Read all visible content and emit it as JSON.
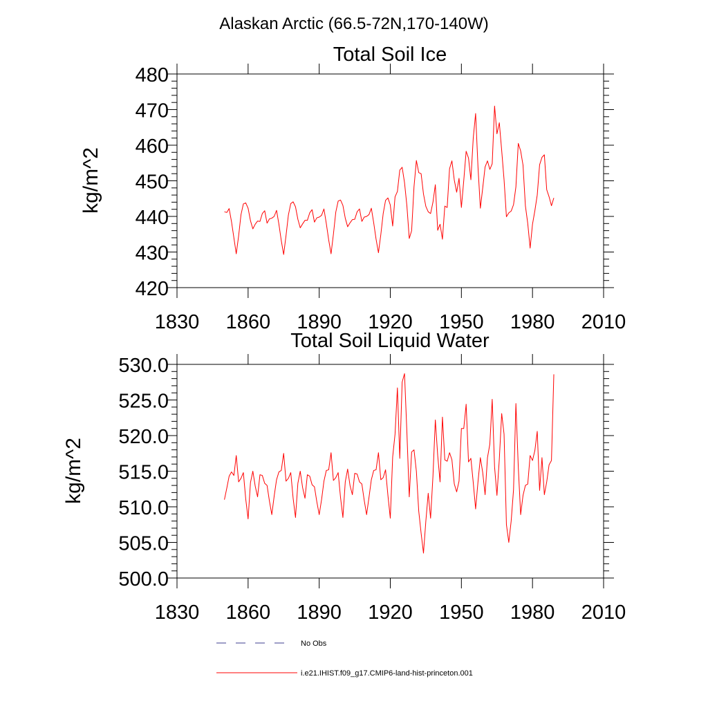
{
  "figure": {
    "title": "Alaskan Arctic (66.5-72N,170-140W)"
  },
  "legend": {
    "placement": "bottom-center",
    "entries": [
      {
        "label": "No Obs",
        "color": "#3b3b8f",
        "dash": "dashed"
      },
      {
        "label": "i.e21.IHIST.f09_g17.CMIP6-land-hist-princeton.001",
        "color": "#ff0000",
        "dash": "solid"
      }
    ]
  },
  "chart_data": [
    {
      "type": "line",
      "title": "Total Soil Ice",
      "xlabel": "",
      "ylabel": "kg/m^2",
      "xlim": [
        1830,
        2010
      ],
      "ylim": [
        420,
        480
      ],
      "xticks": [
        1830,
        1860,
        1890,
        1920,
        1950,
        1980,
        2010
      ],
      "xtick_labels": [
        "1830",
        "1860",
        "1890",
        "1920",
        "1950",
        "1980",
        "2010"
      ],
      "yticks": [
        420,
        430,
        440,
        450,
        460,
        470,
        480
      ],
      "ytick_labels": [
        "420",
        "430",
        "440",
        "450",
        "460",
        "470",
        "480"
      ],
      "grid": false,
      "series": [
        {
          "name": "i.e21.IHIST.f09_g17.CMIP6-land-hist-princeton.001",
          "color": "#ff0000",
          "x": [
            1850,
            1851,
            1852,
            1853,
            1854,
            1855,
            1856,
            1857,
            1858,
            1859,
            1860,
            1861,
            1862,
            1863,
            1864,
            1865,
            1866,
            1867,
            1868,
            1869,
            1870,
            1871,
            1872,
            1873,
            1874,
            1875,
            1876,
            1877,
            1878,
            1879,
            1880,
            1881,
            1882,
            1883,
            1884,
            1885,
            1886,
            1887,
            1888,
            1889,
            1890,
            1891,
            1892,
            1893,
            1894,
            1895,
            1896,
            1897,
            1898,
            1899,
            1900,
            1901,
            1902,
            1903,
            1904,
            1905,
            1906,
            1907,
            1908,
            1909,
            1910,
            1911,
            1912,
            1913,
            1914,
            1915,
            1916,
            1917,
            1918,
            1919,
            1920,
            1921,
            1922,
            1923,
            1924,
            1925,
            1926,
            1927,
            1928,
            1929,
            1930,
            1931,
            1932,
            1933,
            1934,
            1935,
            1936,
            1937,
            1938,
            1939,
            1940,
            1941,
            1942,
            1943,
            1944,
            1945,
            1946,
            1947,
            1948,
            1949,
            1950,
            1951,
            1952,
            1953,
            1954,
            1955,
            1956,
            1957,
            1958,
            1959,
            1960,
            1961,
            1962,
            1963,
            1964,
            1965,
            1966,
            1967,
            1968,
            1969,
            1970,
            1971,
            1972,
            1973,
            1974,
            1975,
            1976,
            1977,
            1978,
            1979,
            1980,
            1981,
            1982,
            1983,
            1984,
            1985,
            1986,
            1987,
            1988,
            1989
          ],
          "values": [
            441.3,
            441.1,
            442.2,
            438.5,
            434.0,
            429.5,
            434.5,
            440.5,
            443.5,
            443.8,
            442.3,
            438.8,
            436.5,
            437.8,
            438.7,
            438.6,
            440.8,
            441.6,
            438.1,
            439.3,
            439.5,
            440.0,
            441.7,
            437.8,
            433.2,
            429.3,
            434.6,
            440.4,
            443.6,
            444.1,
            442.7,
            439.2,
            436.8,
            437.9,
            438.9,
            438.9,
            441.0,
            441.9,
            438.4,
            439.6,
            439.8,
            440.3,
            442.1,
            438.0,
            433.4,
            429.5,
            435.0,
            441.2,
            444.3,
            444.6,
            443.1,
            439.5,
            437.1,
            438.2,
            439.1,
            439.2,
            441.3,
            442.1,
            438.6,
            439.8,
            440.0,
            440.5,
            442.3,
            438.2,
            433.6,
            429.8,
            434.9,
            440.8,
            444.5,
            445.2,
            443.2,
            437.3,
            445.5,
            447.0,
            453.0,
            453.8,
            449.5,
            443.0,
            433.8,
            436.0,
            448.3,
            455.7,
            452.3,
            452.0,
            446.3,
            442.8,
            441.3,
            440.8,
            444.0,
            448.9,
            436.1,
            437.8,
            433.6,
            442.9,
            442.5,
            453.4,
            455.6,
            450.2,
            446.8,
            450.7,
            442.5,
            450.1,
            458.3,
            456.4,
            450.3,
            462.0,
            468.9,
            453.9,
            442.3,
            448.0,
            453.9,
            455.6,
            453.2,
            454.8,
            471.0,
            463.2,
            466.3,
            458.5,
            450.3,
            439.9,
            441.0,
            441.5,
            443.3,
            448.3,
            460.5,
            458.4,
            454.4,
            443.0,
            438.0,
            431.1,
            437.8,
            441.6,
            446.0,
            454.5,
            456.6,
            457.3,
            447.5,
            445.5,
            443.0,
            445.2
          ]
        }
      ]
    },
    {
      "type": "line",
      "title": "Total Soil Liquid Water",
      "xlabel": "",
      "ylabel": "kg/m^2",
      "xlim": [
        1830,
        2010
      ],
      "ylim": [
        500,
        530
      ],
      "xticks": [
        1830,
        1860,
        1890,
        1920,
        1950,
        1980,
        2010
      ],
      "xtick_labels": [
        "1830",
        "1860",
        "1890",
        "1920",
        "1950",
        "1980",
        "2010"
      ],
      "yticks": [
        500,
        505,
        510,
        515,
        520,
        525,
        530
      ],
      "ytick_labels": [
        "500.0",
        "505.0",
        "510.0",
        "515.0",
        "520.0",
        "525.0",
        "530.0"
      ],
      "grid": false,
      "series": [
        {
          "name": "i.e21.IHIST.f09_g17.CMIP6-land-hist-princeton.001",
          "color": "#ff0000",
          "x": [
            1850,
            1851,
            1852,
            1853,
            1854,
            1855,
            1856,
            1857,
            1858,
            1859,
            1860,
            1861,
            1862,
            1863,
            1864,
            1865,
            1866,
            1867,
            1868,
            1869,
            1870,
            1871,
            1872,
            1873,
            1874,
            1875,
            1876,
            1877,
            1878,
            1879,
            1880,
            1881,
            1882,
            1883,
            1884,
            1885,
            1886,
            1887,
            1888,
            1889,
            1890,
            1891,
            1892,
            1893,
            1894,
            1895,
            1896,
            1897,
            1898,
            1899,
            1900,
            1901,
            1902,
            1903,
            1904,
            1905,
            1906,
            1907,
            1908,
            1909,
            1910,
            1911,
            1912,
            1913,
            1914,
            1915,
            1916,
            1917,
            1918,
            1919,
            1920,
            1921,
            1922,
            1923,
            1924,
            1925,
            1926,
            1927,
            1928,
            1929,
            1930,
            1931,
            1932,
            1933,
            1934,
            1935,
            1936,
            1937,
            1938,
            1939,
            1940,
            1941,
            1942,
            1943,
            1944,
            1945,
            1946,
            1947,
            1948,
            1949,
            1950,
            1951,
            1952,
            1953,
            1954,
            1955,
            1956,
            1957,
            1958,
            1959,
            1960,
            1961,
            1962,
            1963,
            1964,
            1965,
            1966,
            1967,
            1968,
            1969,
            1970,
            1971,
            1972,
            1973,
            1974,
            1975,
            1976,
            1977,
            1978,
            1979,
            1980,
            1981,
            1982,
            1983,
            1984,
            1985,
            1986,
            1987,
            1988,
            1989
          ],
          "values": [
            511.0,
            512.6,
            514.3,
            514.9,
            514.4,
            517.2,
            513.5,
            514.0,
            514.8,
            511.1,
            508.3,
            513.4,
            515.0,
            512.9,
            511.4,
            514.5,
            514.4,
            513.3,
            513.0,
            510.8,
            508.9,
            511.5,
            513.8,
            514.9,
            515.1,
            517.5,
            513.6,
            514.0,
            514.8,
            511.2,
            508.5,
            513.3,
            515.0,
            512.7,
            511.2,
            514.5,
            514.3,
            513.1,
            512.8,
            510.7,
            508.9,
            511.0,
            513.6,
            515.1,
            515.2,
            517.6,
            513.7,
            514.1,
            514.8,
            511.3,
            508.5,
            513.5,
            515.3,
            513.0,
            511.7,
            514.7,
            514.6,
            513.5,
            513.2,
            510.9,
            508.9,
            511.3,
            513.8,
            515.1,
            515.2,
            517.6,
            513.8,
            514.1,
            515.2,
            511.6,
            508.4,
            517.0,
            520.2,
            526.7,
            516.8,
            527.5,
            528.7,
            520.5,
            511.4,
            517.7,
            518.0,
            515.0,
            509.4,
            506.3,
            503.5,
            508.0,
            511.9,
            508.4,
            514.3,
            522.2,
            517.2,
            513.5,
            522.6,
            516.6,
            516.4,
            517.6,
            516.6,
            513.2,
            512.1,
            513.6,
            521.0,
            521.0,
            524.4,
            516.3,
            516.8,
            513.4,
            509.7,
            513.5,
            516.9,
            514.8,
            511.7,
            516.9,
            518.8,
            525.1,
            515.6,
            511.6,
            516.7,
            523.1,
            520.2,
            507.5,
            505.0,
            508.0,
            512.4,
            524.5,
            515.6,
            508.9,
            511.6,
            513.0,
            513.2,
            517.2,
            516.5,
            517.9,
            520.6,
            512.3,
            516.9,
            511.7,
            513.5,
            515.9,
            516.5,
            528.6
          ]
        }
      ]
    }
  ]
}
